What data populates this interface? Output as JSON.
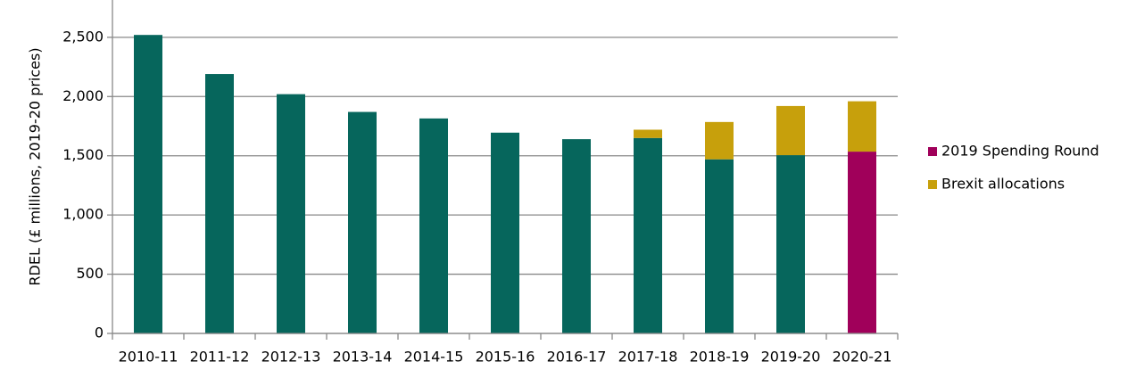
{
  "chart_data": {
    "type": "stacked-bar",
    "y_label": "RDEL (£ millions, 2019-20 prices)",
    "categories": [
      "2010-11",
      "2011-12",
      "2012-13",
      "2013-14",
      "2014-15",
      "2015-16",
      "2016-17",
      "2017-18",
      "2018-19",
      "2019-20",
      "2020-21"
    ],
    "series": [
      {
        "color": "#06665c",
        "values": [
          2520,
          2190,
          2020,
          1870,
          1815,
          1695,
          1640,
          1650,
          1470,
          1505,
          null
        ]
      },
      {
        "name": "2019 Spending Round",
        "color": "#a0005a",
        "values": [
          null,
          null,
          null,
          null,
          null,
          null,
          null,
          null,
          null,
          null,
          1535
        ]
      },
      {
        "name": "Brexit allocations",
        "color": "#c7a00c",
        "values": [
          null,
          null,
          null,
          null,
          null,
          null,
          null,
          70,
          315,
          415,
          425
        ]
      }
    ],
    "ylim": [
      0,
      2800
    ],
    "yticks": [
      0,
      500,
      {
        "value": 1000,
        "label": "1,000"
      },
      {
        "value": 1500,
        "label": "1,500"
      },
      {
        "value": 2000,
        "label": "2,000"
      },
      {
        "value": 2500,
        "label": "2,500"
      }
    ],
    "grid": true,
    "legend": "right"
  }
}
